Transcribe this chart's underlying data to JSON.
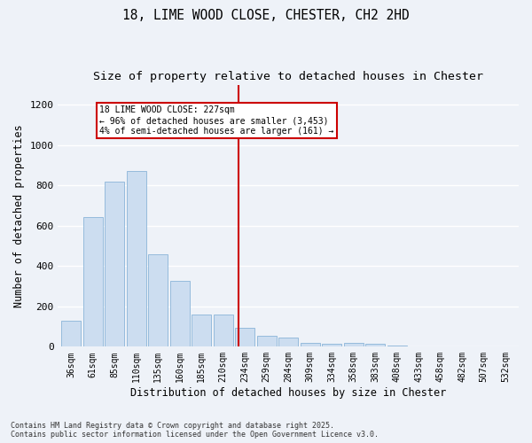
{
  "title": "18, LIME WOOD CLOSE, CHESTER, CH2 2HD",
  "subtitle": "Size of property relative to detached houses in Chester",
  "xlabel": "Distribution of detached houses by size in Chester",
  "ylabel": "Number of detached properties",
  "footnote": "Contains HM Land Registry data © Crown copyright and database right 2025.\nContains public sector information licensed under the Open Government Licence v3.0.",
  "bar_labels": [
    "36sqm",
    "61sqm",
    "85sqm",
    "110sqm",
    "135sqm",
    "160sqm",
    "185sqm",
    "210sqm",
    "234sqm",
    "259sqm",
    "284sqm",
    "309sqm",
    "334sqm",
    "358sqm",
    "383sqm",
    "408sqm",
    "433sqm",
    "458sqm",
    "482sqm",
    "507sqm",
    "532sqm"
  ],
  "bar_values": [
    130,
    645,
    820,
    870,
    460,
    325,
    160,
    160,
    95,
    55,
    45,
    20,
    15,
    20,
    13,
    5,
    2,
    2,
    1,
    1,
    1
  ],
  "bar_color": "#ccddf0",
  "bar_edge_color": "#8ab4d8",
  "marker_line_color": "#cc0000",
  "marker_box_color": "#cc0000",
  "annotation_line1": "18 LIME WOOD CLOSE: 227sqm",
  "annotation_line2": "← 96% of detached houses are smaller (3,453)",
  "annotation_line3": "4% of semi-detached houses are larger (161) →",
  "ylim": [
    0,
    1300
  ],
  "yticks": [
    0,
    200,
    400,
    600,
    800,
    1000,
    1200
  ],
  "background_color": "#eef2f8",
  "grid_color": "#ffffff",
  "title_fontsize": 10.5,
  "subtitle_fontsize": 9.5,
  "axis_label_fontsize": 8.5,
  "tick_fontsize": 7,
  "footnote_fontsize": 6.0
}
